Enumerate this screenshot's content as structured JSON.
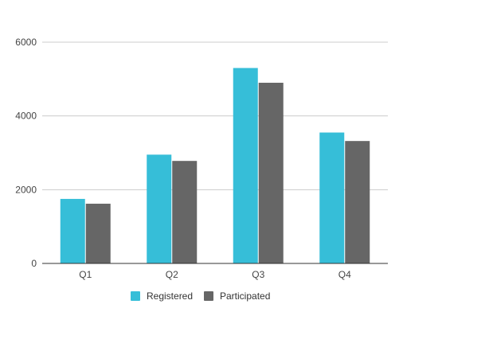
{
  "chart_data": {
    "type": "bar",
    "title": "",
    "xlabel": "",
    "ylabel": "",
    "categories": [
      "Q1",
      "Q2",
      "Q3",
      "Q4"
    ],
    "series": [
      {
        "name": "Registered",
        "values": [
          1750,
          2950,
          5300,
          3550
        ],
        "color": "#36BED8"
      },
      {
        "name": "Participated",
        "values": [
          1620,
          2780,
          4900,
          3320
        ],
        "color": "#666666"
      }
    ],
    "ylim": [
      0,
      6000
    ],
    "yticks": [
      "0",
      "2000",
      "4000",
      "6000"
    ],
    "ytick_values": [
      0,
      2000,
      4000,
      6000
    ],
    "grid": true,
    "legend_position": "bottom"
  }
}
